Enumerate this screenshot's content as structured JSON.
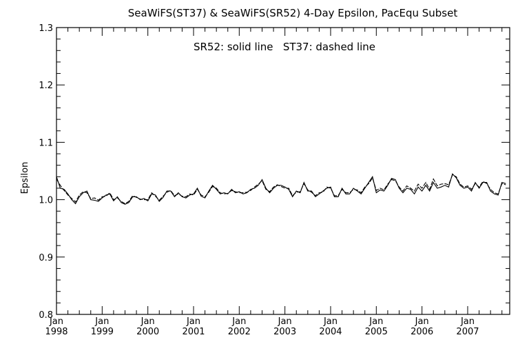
{
  "chart_data": {
    "type": "line",
    "title": "SeaWiFS(ST37) & SeaWiFS(SR52) 4-Day Epsilon, PacEqu Subset",
    "annotation": "SR52: solid line   ST37: dashed line",
    "xlabel": "",
    "ylabel": "Epsilon",
    "ylim": [
      0.8,
      1.3
    ],
    "yticks": [
      "0.8",
      "0.9",
      "1.0",
      "1.1",
      "1.2",
      "1.3"
    ],
    "xlim": [
      1998.0,
      2007.92
    ],
    "xticks": [
      {
        "month": "Jan",
        "year": "1998"
      },
      {
        "month": "Jan",
        "year": "1999"
      },
      {
        "month": "Jan",
        "year": "2000"
      },
      {
        "month": "Jan",
        "year": "2001"
      },
      {
        "month": "Jan",
        "year": "2002"
      },
      {
        "month": "Jan",
        "year": "2003"
      },
      {
        "month": "Jan",
        "year": "2004"
      },
      {
        "month": "Jan",
        "year": "2005"
      },
      {
        "month": "Jan",
        "year": "2006"
      },
      {
        "month": "Jan",
        "year": "2007"
      }
    ],
    "x_start": 1998.0,
    "x_step_months": 1,
    "series": [
      {
        "name": "SR52",
        "style": "solid",
        "values": [
          1.04,
          1.02,
          1.018,
          1.01,
          1.0,
          0.993,
          1.005,
          1.012,
          1.015,
          1.0,
          0.999,
          0.997,
          1.003,
          1.008,
          1.01,
          0.998,
          1.005,
          0.995,
          0.992,
          0.995,
          1.005,
          1.005,
          1.0,
          1.002,
          0.998,
          1.01,
          1.008,
          0.997,
          1.004,
          1.015,
          1.015,
          1.005,
          1.012,
          1.005,
          1.003,
          1.008,
          1.01,
          1.02,
          1.006,
          1.003,
          1.015,
          1.025,
          1.018,
          1.01,
          1.012,
          1.01,
          1.018,
          1.012,
          1.014,
          1.01,
          1.012,
          1.018,
          1.02,
          1.025,
          1.035,
          1.02,
          1.012,
          1.02,
          1.025,
          1.025,
          1.022,
          1.018,
          1.005,
          1.015,
          1.012,
          1.03,
          1.015,
          1.015,
          1.005,
          1.01,
          1.015,
          1.02,
          1.022,
          1.005,
          1.005,
          1.02,
          1.01,
          1.01,
          1.02,
          1.015,
          1.01,
          1.02,
          1.03,
          1.04,
          1.012,
          1.017,
          1.015,
          1.025,
          1.037,
          1.035,
          1.02,
          1.012,
          1.02,
          1.018,
          1.01,
          1.022,
          1.015,
          1.025,
          1.015,
          1.03,
          1.02,
          1.022,
          1.025,
          1.022,
          1.045,
          1.038,
          1.025,
          1.02,
          1.022,
          1.015,
          1.03,
          1.02,
          1.03,
          1.03,
          1.015,
          1.01,
          1.008,
          1.03,
          1.028
        ]
      },
      {
        "name": "ST37",
        "style": "dashed",
        "values": [
          1.036,
          1.025,
          1.016,
          1.008,
          1.002,
          0.996,
          1.008,
          1.014,
          1.012,
          1.002,
          1.003,
          0.999,
          1.005,
          1.006,
          1.012,
          1.0,
          1.003,
          0.997,
          0.993,
          0.997,
          1.007,
          1.004,
          1.001,
          1.0,
          1.0,
          1.012,
          1.006,
          0.999,
          1.006,
          1.013,
          1.016,
          1.007,
          1.01,
          1.006,
          1.005,
          1.01,
          1.008,
          1.018,
          1.008,
          1.005,
          1.013,
          1.023,
          1.02,
          1.012,
          1.01,
          1.011,
          1.016,
          1.014,
          1.012,
          1.012,
          1.013,
          1.016,
          1.022,
          1.027,
          1.033,
          1.018,
          1.014,
          1.022,
          1.026,
          1.023,
          1.02,
          1.02,
          1.007,
          1.013,
          1.014,
          1.028,
          1.017,
          1.013,
          1.007,
          1.012,
          1.013,
          1.022,
          1.02,
          1.007,
          1.007,
          1.018,
          1.012,
          1.012,
          1.018,
          1.017,
          1.012,
          1.022,
          1.028,
          1.038,
          1.016,
          1.02,
          1.017,
          1.027,
          1.035,
          1.033,
          1.022,
          1.015,
          1.024,
          1.02,
          1.015,
          1.027,
          1.02,
          1.03,
          1.018,
          1.036,
          1.024,
          1.027,
          1.028,
          1.026,
          1.043,
          1.04,
          1.027,
          1.022,
          1.024,
          1.018,
          1.028,
          1.022,
          1.032,
          1.028,
          1.018,
          1.012,
          1.01,
          1.028,
          1.026
        ]
      }
    ],
    "grid": false,
    "legend": "top-center annotation"
  }
}
